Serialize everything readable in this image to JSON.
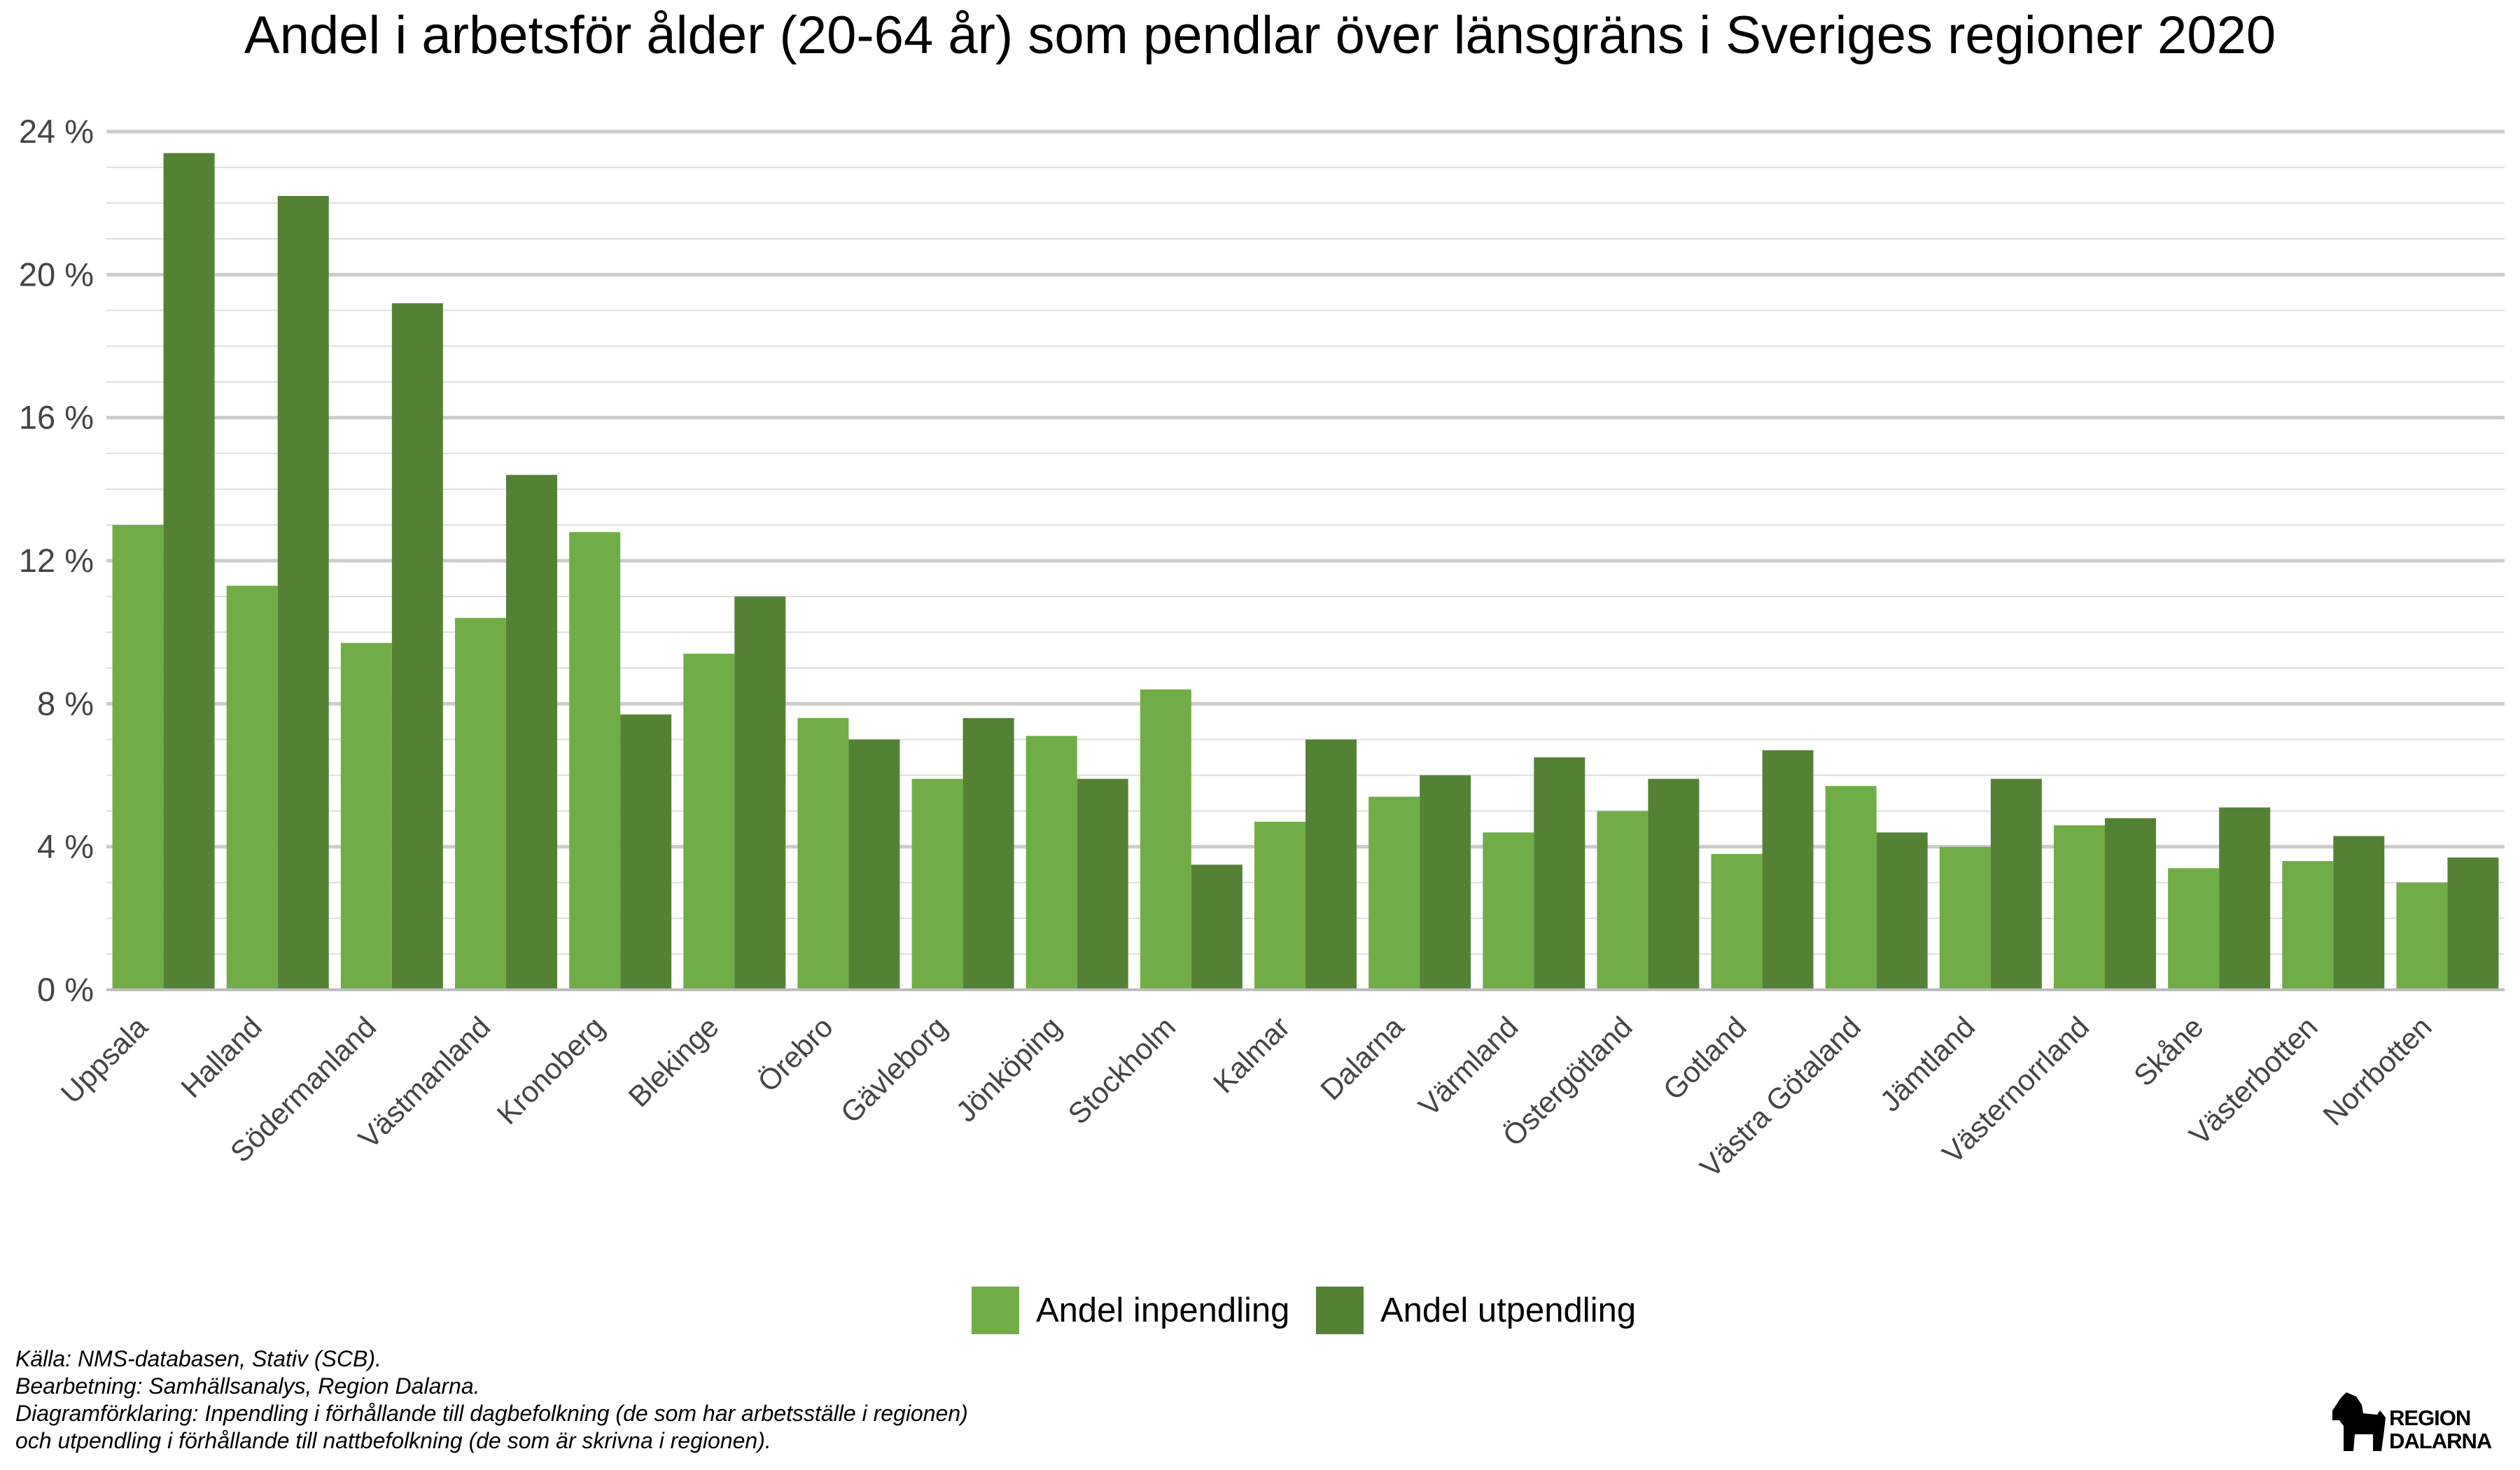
{
  "chart_data": {
    "type": "bar",
    "title": "Andel i arbetsför ålder (20-64 år) som pendlar över länsgräns i Sveriges regioner 2020",
    "categories": [
      "Uppsala",
      "Halland",
      "Södermanland",
      "Västmanland",
      "Kronoberg",
      "Blekinge",
      "Örebro",
      "Gävleborg",
      "Jönköping",
      "Stockholm",
      "Kalmar",
      "Dalarna",
      "Värmland",
      "Östergötland",
      "Gotland",
      "Västra Götaland",
      "Jämtland",
      "Västernorrland",
      "Skåne",
      "Västerbotten",
      "Norrbotten"
    ],
    "series": [
      {
        "name": "Andel inpendling",
        "color": "#70ad47",
        "values": [
          13.0,
          11.3,
          9.7,
          10.4,
          12.8,
          9.4,
          7.6,
          5.9,
          7.1,
          8.4,
          4.7,
          5.4,
          4.4,
          5.0,
          3.8,
          5.7,
          4.0,
          4.6,
          3.4,
          3.6,
          3.0
        ]
      },
      {
        "name": "Andel utpendling",
        "color": "#548235",
        "values": [
          23.4,
          22.2,
          19.2,
          14.4,
          7.7,
          11.0,
          7.0,
          7.6,
          5.9,
          3.5,
          7.0,
          6.0,
          6.5,
          5.9,
          6.7,
          4.4,
          5.9,
          4.8,
          5.1,
          4.3,
          3.7
        ]
      }
    ],
    "ylim": [
      0,
      24
    ],
    "yticks": [
      0,
      4,
      8,
      12,
      16,
      20,
      24
    ],
    "ytick_labels": [
      "0 %",
      "4 %",
      "8 %",
      "12 %",
      "16 %",
      "20 %",
      "24 %"
    ],
    "minor_grid_step": 1,
    "grid": true,
    "legend_position": "bottom-center"
  },
  "source_lines": [
    "Källa: NMS-databasen, Stativ (SCB).",
    "Bearbetning: Samhällsanalys, Region Dalarna.",
    "Diagramförklaring: Inpendling i förhållande till dagbefolkning (de som har arbetsställe i regionen)",
    "och utpendling i förhållande till nattbefolkning (de som är skrivna i regionen)."
  ],
  "logo": {
    "line1": "REGION",
    "line2": "DALARNA",
    "icon": "dala-horse-icon"
  }
}
